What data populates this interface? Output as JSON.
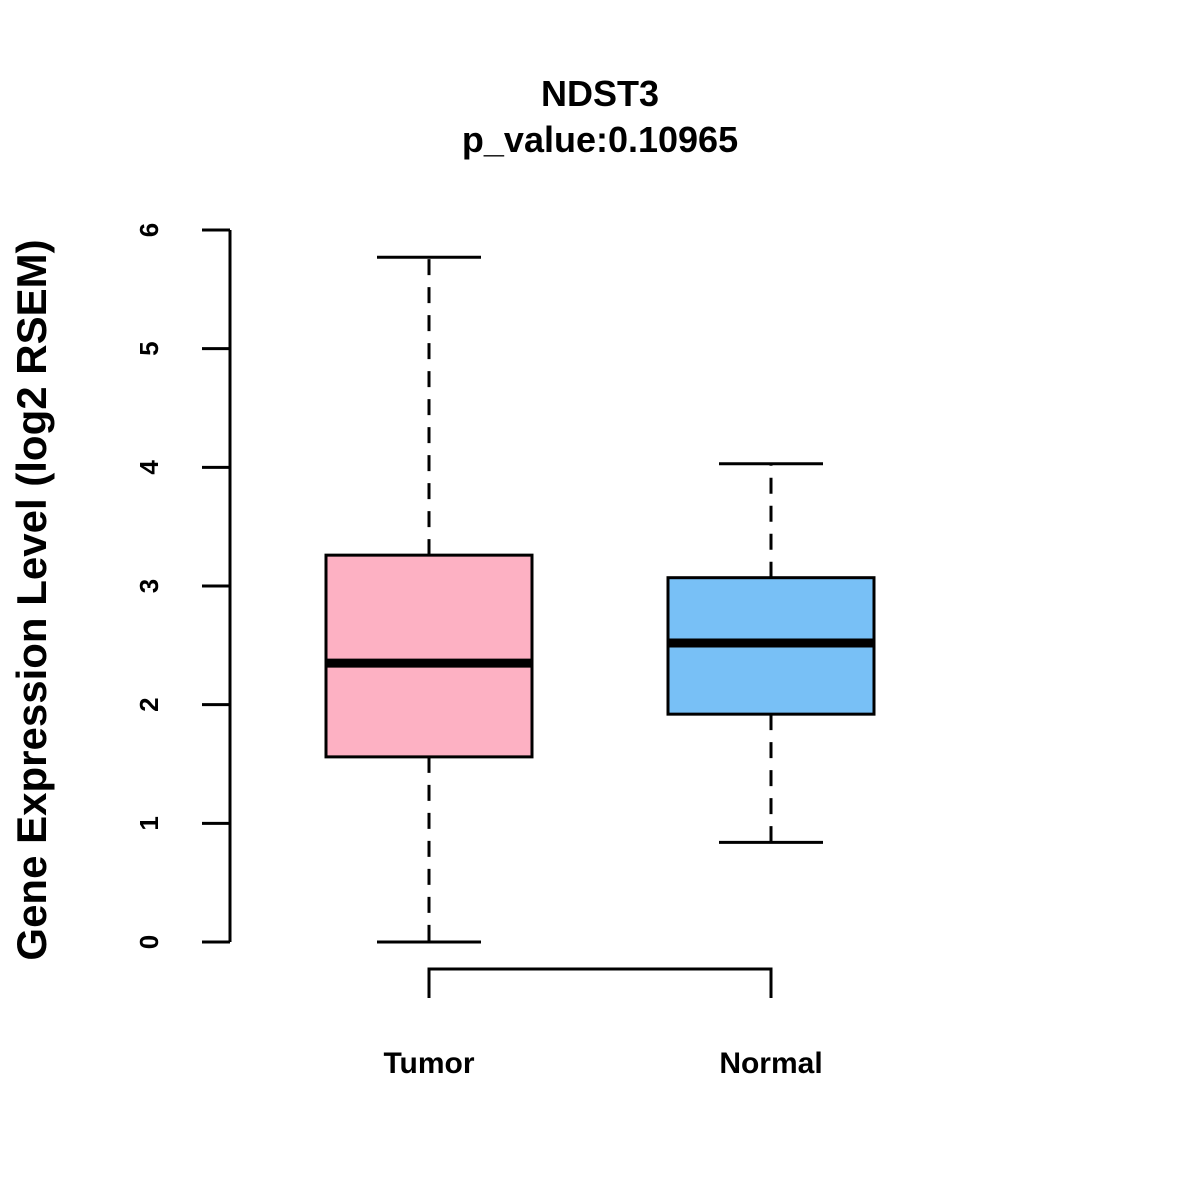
{
  "chart_data": {
    "type": "box",
    "title": "NDST3",
    "subtitle": "p_value:0.10965",
    "xlabel": "",
    "ylabel": "Gene Expression Level (log2 RSEM)",
    "ylim": [
      0,
      6
    ],
    "yticks": [
      "0",
      "1",
      "2",
      "3",
      "4",
      "5",
      "6"
    ],
    "grid": false,
    "categories": [
      "Tumor",
      "Normal"
    ],
    "boxes": [
      {
        "name": "Tumor",
        "whisker_low": 0.0,
        "q1": 1.56,
        "median": 2.35,
        "q3": 3.26,
        "whisker_high": 5.77,
        "color": "#FDB1C3"
      },
      {
        "name": "Normal",
        "whisker_low": 0.84,
        "q1": 1.92,
        "median": 2.52,
        "q3": 3.07,
        "whisker_high": 4.03,
        "color": "#78C0F6"
      }
    ],
    "comparison_bracket": [
      "Tumor",
      "Normal"
    ]
  }
}
